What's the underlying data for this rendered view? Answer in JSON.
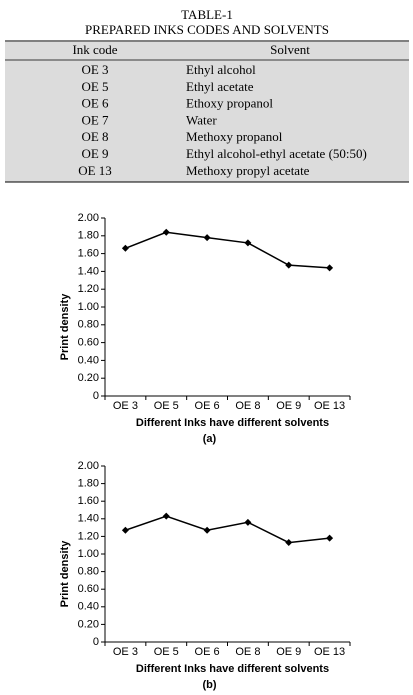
{
  "table": {
    "title": "TABLE-1",
    "subtitle": "PREPARED INKS CODES AND SOLVENTS",
    "header": [
      "Ink code",
      "Solvent"
    ],
    "rows": [
      [
        "OE 3",
        "Ethyl alcohol"
      ],
      [
        "OE 5",
        "Ethyl acetate"
      ],
      [
        "OE 6",
        "Ethoxy propanol"
      ],
      [
        "OE 7",
        "Water"
      ],
      [
        "OE 8",
        "Methoxy propanol"
      ],
      [
        "OE 9",
        "Ethyl alcohol-ethyl acetate (50:50)"
      ],
      [
        "OE 13",
        "Methoxy propyl acetate"
      ]
    ]
  },
  "chart_data": [
    {
      "type": "line",
      "caption": "(a)",
      "x_label": "Different Inks have different solvents",
      "y_label": "Print density",
      "categories": [
        "OE 3",
        "OE 5",
        "OE 6",
        "OE 8",
        "OE 9",
        "OE 13"
      ],
      "values": [
        1.66,
        1.84,
        1.78,
        1.72,
        1.47,
        1.44
      ],
      "color": "#000000",
      "ylim": [
        0,
        2
      ],
      "yticks": [
        0,
        {
          "value": 0.2,
          "label": "0.20"
        },
        {
          "value": 0.4,
          "label": "0.40"
        },
        {
          "value": 0.6,
          "label": "0.60"
        },
        {
          "value": 0.8,
          "label": "0.80"
        },
        {
          "value": 1,
          "label": "1.00"
        },
        {
          "value": 1.2,
          "label": "1.20"
        },
        {
          "value": 1.4,
          "label": "1.40"
        },
        {
          "value": 1.6,
          "label": "1.60"
        },
        {
          "value": 1.8,
          "label": "1.80"
        },
        {
          "value": 2,
          "label": "2.00"
        }
      ]
    },
    {
      "type": "line",
      "caption": "(b)",
      "x_label": "Different Inks have different solvents",
      "y_label": "Print density",
      "categories": [
        "OE 3",
        "OE 5",
        "OE 6",
        "OE 8",
        "OE 9",
        "OE 13"
      ],
      "values": [
        1.27,
        1.43,
        1.27,
        1.36,
        1.13,
        1.18
      ],
      "color": "#000000",
      "ylim": [
        0,
        2
      ],
      "yticks": [
        0,
        {
          "value": 0.2,
          "label": "0.20"
        },
        {
          "value": 0.4,
          "label": "0.40"
        },
        {
          "value": 0.6,
          "label": "0.60"
        },
        {
          "value": 0.8,
          "label": "0.80"
        },
        {
          "value": 1,
          "label": "1.00"
        },
        {
          "value": 1.2,
          "label": "1.20"
        },
        {
          "value": 1.4,
          "label": "1.40"
        },
        {
          "value": 1.6,
          "label": "1.60"
        },
        {
          "value": 1.8,
          "label": "1.80"
        },
        {
          "value": 2,
          "label": "2.00"
        }
      ]
    }
  ]
}
